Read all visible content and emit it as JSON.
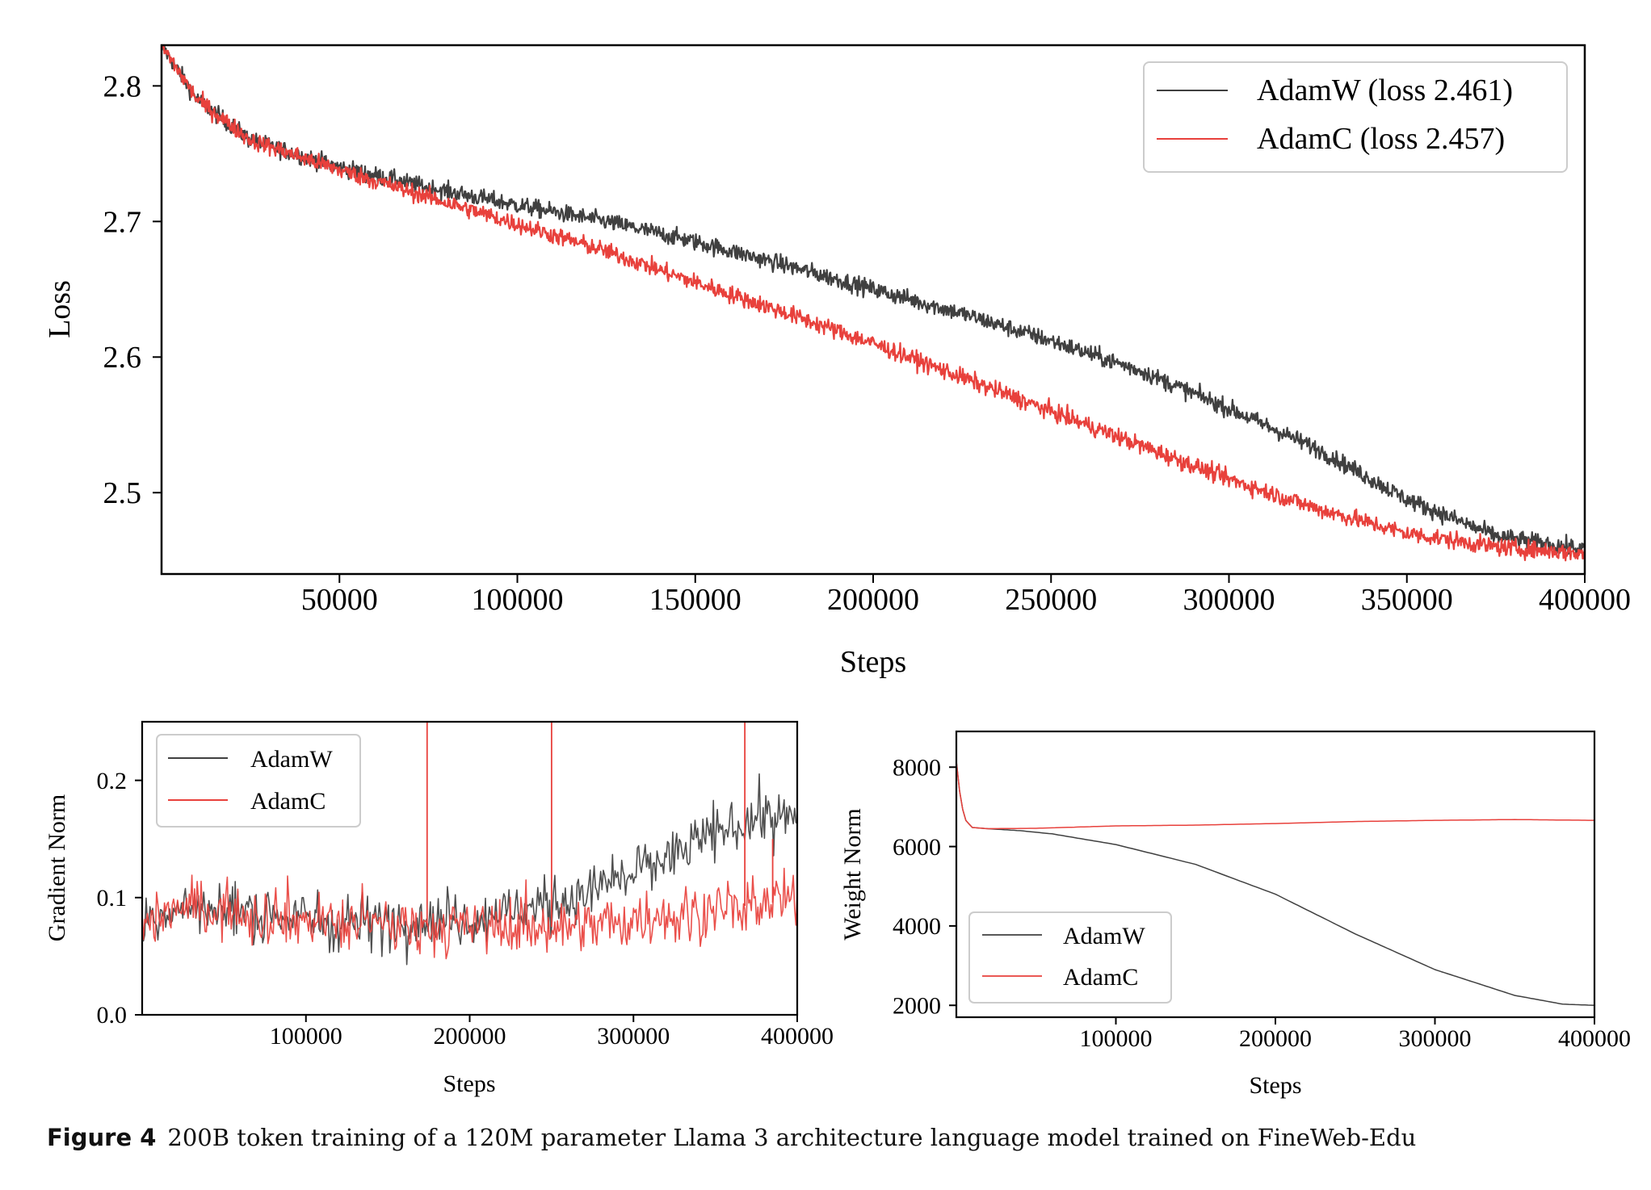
{
  "colors": {
    "adamw": "#404040",
    "adamc": "#e8413c",
    "axis": "#000000"
  },
  "caption": {
    "label": "Figure 4",
    "text": "200B token training of a 120M parameter Llama 3 architecture language model trained on FineWeb-Edu"
  },
  "chart_data": [
    {
      "id": "loss",
      "type": "line",
      "title": "",
      "xlabel": "Steps",
      "ylabel": "Loss",
      "xlim": [
        0,
        400000
      ],
      "ylim": [
        2.44,
        2.83
      ],
      "xticks": [
        50000,
        100000,
        150000,
        200000,
        250000,
        300000,
        350000,
        400000
      ],
      "xticklabels": [
        "50000",
        "100000",
        "150000",
        "200000",
        "250000",
        "300000",
        "350000",
        "400000"
      ],
      "yticks": [
        2.5,
        2.6,
        2.7,
        2.8
      ],
      "yticklabels": [
        "2.5",
        "2.6",
        "2.7",
        "2.8"
      ],
      "grid": false,
      "legend": "top-right",
      "series": [
        {
          "name": "AdamW (loss 2.461)",
          "color": "#404040",
          "noise": 0.0045,
          "points": [
            [
              0,
              2.83
            ],
            [
              10000,
              2.79
            ],
            [
              25000,
              2.76
            ],
            [
              50000,
              2.74
            ],
            [
              75000,
              2.725
            ],
            [
              100000,
              2.712
            ],
            [
              125000,
              2.7
            ],
            [
              150000,
              2.685
            ],
            [
              175000,
              2.668
            ],
            [
              200000,
              2.65
            ],
            [
              225000,
              2.632
            ],
            [
              250000,
              2.612
            ],
            [
              275000,
              2.59
            ],
            [
              300000,
              2.562
            ],
            [
              325000,
              2.532
            ],
            [
              350000,
              2.495
            ],
            [
              375000,
              2.468
            ],
            [
              400000,
              2.458
            ]
          ]
        },
        {
          "name": "AdamC (loss 2.457)",
          "color": "#e8413c",
          "noise": 0.0045,
          "points": [
            [
              0,
              2.83
            ],
            [
              10000,
              2.79
            ],
            [
              25000,
              2.76
            ],
            [
              50000,
              2.738
            ],
            [
              75000,
              2.718
            ],
            [
              100000,
              2.698
            ],
            [
              125000,
              2.678
            ],
            [
              150000,
              2.655
            ],
            [
              175000,
              2.633
            ],
            [
              200000,
              2.61
            ],
            [
              225000,
              2.585
            ],
            [
              250000,
              2.56
            ],
            [
              275000,
              2.535
            ],
            [
              300000,
              2.51
            ],
            [
              325000,
              2.488
            ],
            [
              350000,
              2.47
            ],
            [
              375000,
              2.46
            ],
            [
              400000,
              2.455
            ]
          ]
        }
      ]
    },
    {
      "id": "grad",
      "type": "line",
      "title": "",
      "xlabel": "Steps",
      "ylabel": "Gradient Norm",
      "xlim": [
        0,
        400000
      ],
      "ylim": [
        0,
        0.25
      ],
      "xticks": [
        100000,
        200000,
        300000,
        400000
      ],
      "xticklabels": [
        "100000",
        "200000",
        "300000",
        "400000"
      ],
      "yticks": [
        0.0,
        0.1,
        0.2
      ],
      "yticklabels": [
        "0.0",
        "0.1",
        "0.2"
      ],
      "grid": false,
      "legend": "top-left",
      "series": [
        {
          "name": "AdamW",
          "color": "#404040",
          "noise": 0.016,
          "points": [
            [
              0,
              0.08
            ],
            [
              20000,
              0.09
            ],
            [
              50000,
              0.09
            ],
            [
              100000,
              0.082
            ],
            [
              150000,
              0.08
            ],
            [
              200000,
              0.082
            ],
            [
              250000,
              0.095
            ],
            [
              300000,
              0.12
            ],
            [
              350000,
              0.155
            ],
            [
              380000,
              0.17
            ],
            [
              400000,
              0.165
            ]
          ]
        },
        {
          "name": "AdamC",
          "color": "#e8413c",
          "noise": 0.016,
          "points": [
            [
              0,
              0.08
            ],
            [
              20000,
              0.09
            ],
            [
              50000,
              0.09
            ],
            [
              100000,
              0.08
            ],
            [
              150000,
              0.077
            ],
            [
              200000,
              0.075
            ],
            [
              250000,
              0.075
            ],
            [
              300000,
              0.08
            ],
            [
              350000,
              0.09
            ],
            [
              400000,
              0.098
            ]
          ],
          "spikes": [
            [
              174000,
              0.25
            ],
            [
              250000,
              0.25
            ],
            [
              368000,
              0.25
            ],
            [
              385000,
              0.15
            ]
          ]
        }
      ]
    },
    {
      "id": "weight",
      "type": "line",
      "title": "",
      "xlabel": "Steps",
      "ylabel": "Weight Norm",
      "xlim": [
        0,
        400000
      ],
      "ylim": [
        1700,
        8900
      ],
      "xticks": [
        100000,
        200000,
        300000,
        400000
      ],
      "xticklabels": [
        "100000",
        "200000",
        "300000",
        "400000"
      ],
      "yticks": [
        2000,
        4000,
        6000,
        8000
      ],
      "yticklabels": [
        "2000",
        "4000",
        "6000",
        "8000"
      ],
      "grid": false,
      "legend": "bottom-left",
      "series": [
        {
          "name": "AdamW",
          "color": "#404040",
          "noise": 0,
          "points": [
            [
              0,
              8150
            ],
            [
              2000,
              7400
            ],
            [
              5000,
              6700
            ],
            [
              10000,
              6480
            ],
            [
              20000,
              6450
            ],
            [
              40000,
              6400
            ],
            [
              60000,
              6320
            ],
            [
              100000,
              6050
            ],
            [
              150000,
              5550
            ],
            [
              200000,
              4800
            ],
            [
              250000,
              3800
            ],
            [
              300000,
              2900
            ],
            [
              350000,
              2250
            ],
            [
              380000,
              2030
            ],
            [
              400000,
              2000
            ]
          ]
        },
        {
          "name": "AdamC",
          "color": "#e8413c",
          "noise": 0,
          "points": [
            [
              0,
              8150
            ],
            [
              2000,
              7400
            ],
            [
              5000,
              6700
            ],
            [
              10000,
              6480
            ],
            [
              20000,
              6450
            ],
            [
              50000,
              6460
            ],
            [
              100000,
              6520
            ],
            [
              150000,
              6540
            ],
            [
              200000,
              6580
            ],
            [
              250000,
              6630
            ],
            [
              300000,
              6660
            ],
            [
              350000,
              6680
            ],
            [
              400000,
              6660
            ]
          ]
        }
      ]
    }
  ]
}
